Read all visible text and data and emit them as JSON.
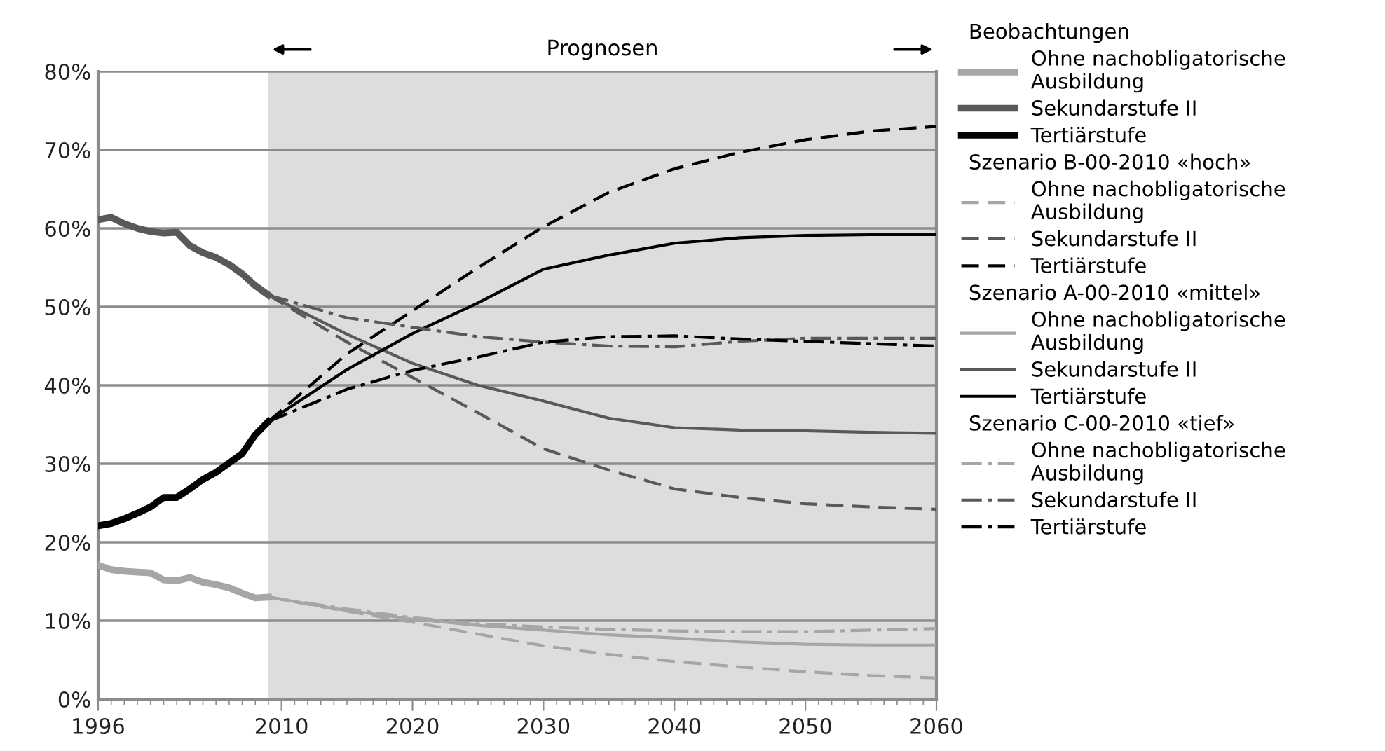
{
  "chart_data": {
    "type": "line",
    "xlim": [
      1996,
      2060
    ],
    "xticks": [
      1996,
      2010,
      2020,
      2030,
      2040,
      2050,
      2060
    ],
    "ylim": [
      0,
      80
    ],
    "yticks": [
      {
        "value": 0,
        "label": "0%"
      },
      {
        "value": 10,
        "label": "10%"
      },
      {
        "value": 20,
        "label": "20%"
      },
      {
        "value": 30,
        "label": "30%"
      },
      {
        "value": 40,
        "label": "40%"
      },
      {
        "value": 50,
        "label": "50%"
      },
      {
        "value": 60,
        "label": "60%"
      },
      {
        "value": 70,
        "label": "70%"
      },
      {
        "value": 80,
        "label": "80%"
      }
    ],
    "grid": "y",
    "legend": "right",
    "annotations": [
      "Beobachtungen",
      "Szenario B-00-2010 «hoch»",
      "Szenario A-00-2010 «mittel»",
      "Szenario C-00-2010 «tief»"
    ],
    "bands": [
      {
        "axis": "x",
        "from": 2009,
        "to": 2060,
        "label": "Prognosen",
        "color": "#dddddd"
      }
    ],
    "series": [
      {
        "name": "Ohne nachobligatorische Ausbildung",
        "color": "#a6a6a6",
        "line_style": "solid",
        "x": [
          1996,
          1997,
          1998,
          1999,
          2000,
          2001,
          2002,
          2003,
          2004,
          2005,
          2006,
          2007,
          2008,
          2009
        ],
        "values": [
          17.1,
          16.5,
          16.3,
          16.2,
          16.1,
          15.2,
          15.1,
          15.5,
          14.9,
          14.6,
          14.2,
          13.5,
          12.9,
          13.0
        ]
      },
      {
        "name": "Sekundarstufe II",
        "color": "#595959",
        "line_style": "solid",
        "x": [
          1996,
          1997,
          1998,
          1999,
          2000,
          2001,
          2002,
          2003,
          2004,
          2005,
          2006,
          2007,
          2008,
          2009
        ],
        "values": [
          61.1,
          61.4,
          60.6,
          60.0,
          59.6,
          59.4,
          59.5,
          57.8,
          56.9,
          56.3,
          55.4,
          54.2,
          52.7,
          51.5
        ]
      },
      {
        "name": "Tertiärstufe",
        "color": "#000000",
        "line_style": "solid",
        "x": [
          1996,
          1997,
          1998,
          1999,
          2000,
          2001,
          2002,
          2003,
          2004,
          2005,
          2006,
          2007,
          2008,
          2009
        ],
        "values": [
          22.1,
          22.4,
          23.0,
          23.7,
          24.5,
          25.7,
          25.7,
          26.8,
          28.0,
          28.9,
          30.1,
          31.3,
          33.7,
          35.4
        ]
      },
      {
        "name": "Ohne nachobligatorische Ausbildung",
        "color": "#a6a6a6",
        "line_style": "dashed",
        "x": [
          2009,
          2015,
          2020,
          2025,
          2030,
          2035,
          2040,
          2045,
          2050,
          2055,
          2060
        ],
        "values": [
          13.0,
          11.2,
          9.8,
          8.3,
          6.8,
          5.7,
          4.8,
          4.1,
          3.5,
          3.0,
          2.7
        ]
      },
      {
        "name": "Sekundarstufe II",
        "color": "#595959",
        "line_style": "dashed",
        "x": [
          2009,
          2015,
          2020,
          2025,
          2030,
          2035,
          2040,
          2045,
          2050,
          2055,
          2060
        ],
        "values": [
          51.5,
          45.5,
          41.0,
          36.5,
          31.9,
          29.2,
          26.8,
          25.7,
          24.9,
          24.5,
          24.2
        ]
      },
      {
        "name": "Tertiärstufe",
        "color": "#000000",
        "line_style": "dashed",
        "x": [
          2009,
          2015,
          2020,
          2025,
          2030,
          2035,
          2040,
          2045,
          2050,
          2055,
          2060
        ],
        "values": [
          35.4,
          44.0,
          49.5,
          55.0,
          60.2,
          64.6,
          67.6,
          69.7,
          71.3,
          72.4,
          73.0
        ]
      },
      {
        "name": "Ohne nachobligatorische Ausbildung",
        "color": "#a6a6a6",
        "line_style": "solid",
        "x": [
          2009,
          2015,
          2020,
          2025,
          2030,
          2035,
          2040,
          2045,
          2050,
          2055,
          2060
        ],
        "values": [
          13.0,
          11.3,
          10.2,
          9.4,
          8.8,
          8.2,
          7.8,
          7.3,
          7.0,
          6.9,
          6.9
        ]
      },
      {
        "name": "Sekundarstufe II",
        "color": "#595959",
        "line_style": "solid",
        "x": [
          2009,
          2015,
          2020,
          2025,
          2030,
          2035,
          2040,
          2045,
          2050,
          2055,
          2060
        ],
        "values": [
          51.5,
          46.5,
          42.8,
          40.0,
          38.0,
          35.8,
          34.6,
          34.3,
          34.2,
          34.0,
          33.9
        ]
      },
      {
        "name": "Tertiärstufe",
        "color": "#000000",
        "line_style": "solid",
        "x": [
          2009,
          2015,
          2020,
          2025,
          2030,
          2035,
          2040,
          2045,
          2050,
          2055,
          2060
        ],
        "values": [
          35.4,
          42.0,
          46.6,
          50.5,
          54.8,
          56.6,
          58.1,
          58.8,
          59.1,
          59.2,
          59.2
        ]
      },
      {
        "name": "Ohne nachobligatorische Ausbildung",
        "color": "#a6a6a6",
        "line_style": "dashdot",
        "x": [
          2009,
          2015,
          2020,
          2025,
          2030,
          2035,
          2040,
          2045,
          2050,
          2055,
          2060
        ],
        "values": [
          13.0,
          11.5,
          10.4,
          9.6,
          9.2,
          8.9,
          8.7,
          8.6,
          8.6,
          8.8,
          9.0
        ]
      },
      {
        "name": "Sekundarstufe II",
        "color": "#595959",
        "line_style": "dashdot",
        "x": [
          2009,
          2015,
          2020,
          2025,
          2030,
          2035,
          2040,
          2045,
          2050,
          2055,
          2060
        ],
        "values": [
          51.5,
          48.6,
          47.4,
          46.2,
          45.5,
          45.0,
          44.9,
          45.6,
          46.0,
          46.0,
          46.0
        ]
      },
      {
        "name": "Tertiärstufe",
        "color": "#000000",
        "line_style": "dashdot",
        "x": [
          2009,
          2015,
          2020,
          2025,
          2030,
          2035,
          2040,
          2045,
          2050,
          2055,
          2060
        ],
        "values": [
          35.4,
          39.5,
          41.9,
          43.6,
          45.5,
          46.2,
          46.3,
          45.9,
          45.6,
          45.3,
          45.0
        ]
      }
    ]
  }
}
